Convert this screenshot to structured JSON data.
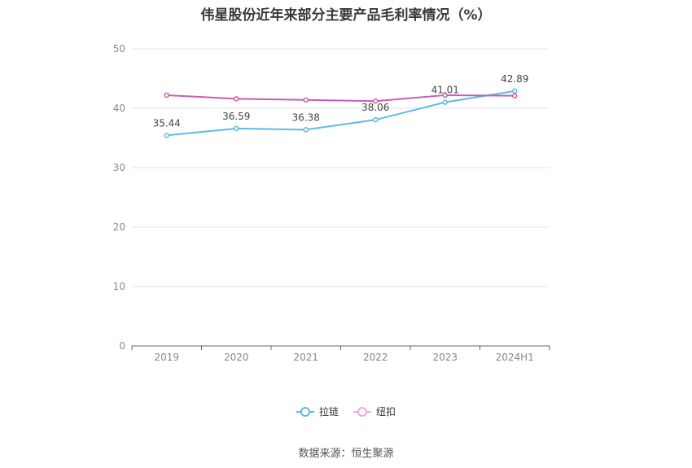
{
  "chart_data": {
    "type": "line",
    "title": "伟星股份近年来部分主要产品毛利率情况（%）",
    "categories": [
      "2019",
      "2020",
      "2021",
      "2022",
      "2023",
      "2024H1"
    ],
    "ylim": [
      0,
      50
    ],
    "yticks": [
      0,
      10,
      20,
      30,
      40,
      50
    ],
    "grid": true,
    "legend_position": "bottom",
    "series": [
      {
        "name": "拉链",
        "color": "#5bbbe8",
        "values": [
          35.44,
          36.59,
          36.38,
          38.06,
          41.01,
          42.89
        ],
        "labels": [
          "35.44",
          "36.59",
          "36.38",
          "38.06",
          "41.01",
          "42.89"
        ]
      },
      {
        "name": "纽扣",
        "color": "#c95db0",
        "values": [
          42.2,
          41.6,
          41.4,
          41.2,
          42.2,
          42.1
        ]
      }
    ]
  },
  "legend": {
    "items": [
      {
        "label": "拉链",
        "color": "#5bbbe8"
      },
      {
        "label": "纽扣",
        "color": "#f0a8d8"
      }
    ]
  },
  "source": "数据来源：恒生聚源"
}
